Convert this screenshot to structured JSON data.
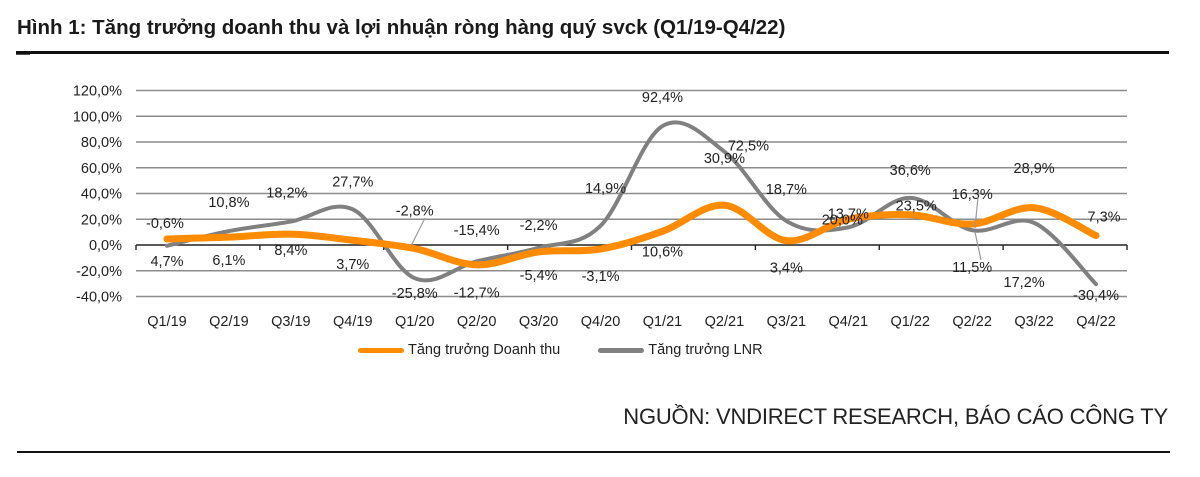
{
  "figure": {
    "title": "Hình 1: Tăng trưởng doanh thu và lợi nhuận ròng hàng quý svck (Q1/19-Q4/22)",
    "source": "NGUỒN: VNDIRECT RESEARCH, BÁO CÁO CÔNG TY"
  },
  "legend": {
    "items": [
      {
        "label": "Tăng trưởng Doanh thu",
        "color": "#FF8C00"
      },
      {
        "label": "Tăng trưởng LNR",
        "color": "#808080"
      }
    ]
  },
  "chart_data": {
    "type": "line",
    "title": "Hình 1: Tăng trưởng doanh thu và lợi nhuận ròng hàng quý svck (Q1/19-Q4/22)",
    "xlabel": "",
    "ylabel": "",
    "ylim": [
      -40,
      120
    ],
    "yticks": [
      "120,0%",
      "100,0%",
      "80,0%",
      "60,0%",
      "40,0%",
      "20,0%",
      "0,0%",
      "-20,0%",
      "-40,0%"
    ],
    "ytick_values": [
      120,
      100,
      80,
      60,
      40,
      20,
      0,
      -20,
      -40
    ],
    "grid": true,
    "legend_position": "bottom",
    "categories": [
      "Q1/19",
      "Q2/19",
      "Q3/19",
      "Q4/19",
      "Q1/20",
      "Q2/20",
      "Q3/20",
      "Q4/20",
      "Q1/21",
      "Q2/21",
      "Q3/21",
      "Q4/21",
      "Q1/22",
      "Q2/22",
      "Q3/22",
      "Q4/22"
    ],
    "series": [
      {
        "name": "Tăng trưởng Doanh thu",
        "color": "#FF8C00",
        "values": [
          4.7,
          6.1,
          8.4,
          3.7,
          -2.8,
          -15.4,
          -5.4,
          -3.1,
          10.6,
          30.9,
          3.4,
          20.0,
          23.5,
          16.3,
          28.9,
          7.3
        ],
        "labels": [
          "4,7%",
          "6,1%",
          "8,4%",
          "3,7%",
          "-2,8%",
          "-15,4%",
          "-5,4%",
          "-3,1%",
          "10,6%",
          "30,9%",
          "3,4%",
          "20,0%",
          "23,5%",
          "16,3%",
          "28,9%",
          "7,3%"
        ]
      },
      {
        "name": "Tăng trưởng LNR",
        "color": "#808080",
        "values": [
          -0.6,
          10.8,
          18.2,
          27.7,
          -25.8,
          -12.7,
          -2.2,
          14.9,
          92.4,
          72.5,
          18.7,
          13.7,
          36.6,
          11.5,
          17.2,
          -30.4
        ],
        "labels": [
          "-0,6%",
          "10,8%",
          "18,2%",
          "27,7%",
          "-25,8%",
          "-12,7%",
          "-2,2%",
          "14,9%",
          "92,4%",
          "72,5%",
          "18,7%",
          "13,7%",
          "36,6%",
          "11,5%",
          "17,2%",
          "-30,4%"
        ]
      }
    ]
  }
}
